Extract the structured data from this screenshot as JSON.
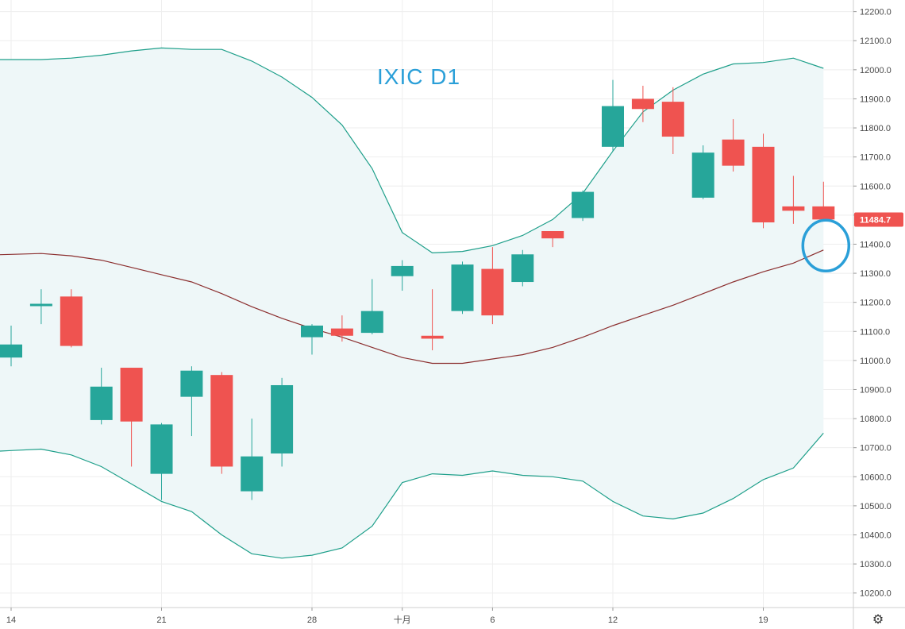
{
  "chart_data": {
    "type": "candlestick",
    "annotation": "IXIC D1",
    "last_price_label": "11484.7",
    "ylim": [
      10150,
      12240
    ],
    "y_ticks": [
      "10200.0",
      "10300.0",
      "10400.0",
      "10500.0",
      "10600.0",
      "10700.0",
      "10800.0",
      "10900.0",
      "11000.0",
      "11100.0",
      "11200.0",
      "11300.0",
      "11400.0",
      "11500.0",
      "11600.0",
      "11700.0",
      "11800.0",
      "11900.0",
      "12000.0",
      "12100.0",
      "12200.0"
    ],
    "x_ticks": [
      {
        "i": 0,
        "label": "14"
      },
      {
        "i": 5,
        "label": "21"
      },
      {
        "i": 10,
        "label": "28"
      },
      {
        "i": 13,
        "label": "十月"
      },
      {
        "i": 16,
        "label": "6"
      },
      {
        "i": 20,
        "label": "12"
      },
      {
        "i": 25,
        "label": "19"
      }
    ],
    "candles": [
      {
        "o": 11010,
        "h": 11120,
        "l": 10980,
        "c": 11055
      },
      {
        "o": 11190,
        "h": 11245,
        "l": 11125,
        "c": 11195
      },
      {
        "o": 11220,
        "h": 11245,
        "l": 11045,
        "c": 11050
      },
      {
        "o": 10795,
        "h": 10975,
        "l": 10780,
        "c": 10910
      },
      {
        "o": 10975,
        "h": 10975,
        "l": 10635,
        "c": 10790
      },
      {
        "o": 10610,
        "h": 10785,
        "l": 10520,
        "c": 10780
      },
      {
        "o": 10875,
        "h": 10980,
        "l": 10740,
        "c": 10965
      },
      {
        "o": 10950,
        "h": 10960,
        "l": 10610,
        "c": 10635
      },
      {
        "o": 10550,
        "h": 10800,
        "l": 10520,
        "c": 10670
      },
      {
        "o": 10680,
        "h": 10940,
        "l": 10635,
        "c": 10915
      },
      {
        "o": 11080,
        "h": 11125,
        "l": 11020,
        "c": 11120
      },
      {
        "o": 11110,
        "h": 11155,
        "l": 11065,
        "c": 11085
      },
      {
        "o": 11095,
        "h": 11280,
        "l": 11090,
        "c": 11170
      },
      {
        "o": 11290,
        "h": 11345,
        "l": 11240,
        "c": 11325
      },
      {
        "o": 11085,
        "h": 11245,
        "l": 11035,
        "c": 11075
      },
      {
        "o": 11170,
        "h": 11340,
        "l": 11160,
        "c": 11330
      },
      {
        "o": 11315,
        "h": 11390,
        "l": 11125,
        "c": 11155
      },
      {
        "o": 11270,
        "h": 11380,
        "l": 11255,
        "c": 11365
      },
      {
        "o": 11445,
        "h": 11445,
        "l": 11390,
        "c": 11420
      },
      {
        "o": 11490,
        "h": 11585,
        "l": 11480,
        "c": 11580
      },
      {
        "o": 11735,
        "h": 11965,
        "l": 11720,
        "c": 11875
      },
      {
        "o": 11900,
        "h": 11945,
        "l": 11820,
        "c": 11865
      },
      {
        "o": 11890,
        "h": 11940,
        "l": 11710,
        "c": 11770
      },
      {
        "o": 11560,
        "h": 11740,
        "l": 11555,
        "c": 11715
      },
      {
        "o": 11760,
        "h": 11830,
        "l": 11650,
        "c": 11670
      },
      {
        "o": 11735,
        "h": 11780,
        "l": 11455,
        "c": 11475
      },
      {
        "o": 11530,
        "h": 11635,
        "l": 11470,
        "c": 11515
      },
      {
        "o": 11530,
        "h": 11615,
        "l": 11485,
        "c": 11485
      }
    ],
    "bollinger_upper": [
      12035,
      12035,
      12040,
      12050,
      12065,
      12075,
      12070,
      12070,
      12030,
      11975,
      11905,
      11810,
      11660,
      11440,
      11370,
      11375,
      11395,
      11430,
      11485,
      11575,
      11720,
      11855,
      11930,
      11985,
      12020,
      12025,
      12040,
      12005
    ],
    "bollinger_middle": [
      11365,
      11368,
      11360,
      11345,
      11320,
      11295,
      11270,
      11230,
      11185,
      11145,
      11110,
      11080,
      11045,
      11010,
      10990,
      10990,
      11005,
      11020,
      11045,
      11080,
      11120,
      11155,
      11190,
      11230,
      11270,
      11305,
      11335,
      11380
    ],
    "bollinger_lower": [
      10690,
      10695,
      10675,
      10635,
      10575,
      10515,
      10480,
      10400,
      10335,
      10320,
      10330,
      10355,
      10430,
      10580,
      10610,
      10605,
      10620,
      10605,
      10600,
      10585,
      10515,
      10465,
      10455,
      10475,
      10525,
      10590,
      10630,
      10750
    ],
    "colors": {
      "up": "#26a69a",
      "down": "#ef5350",
      "band": "#1e9f8a",
      "band_fill": "#eef7f8",
      "middle": "#8b2e2e",
      "annotation": "#2a9fd8",
      "circle": "#2a9fd8",
      "grid": "#eeeeee",
      "price_tag": "#ef5350"
    },
    "grid": true
  },
  "settings_icon": "gear-icon"
}
